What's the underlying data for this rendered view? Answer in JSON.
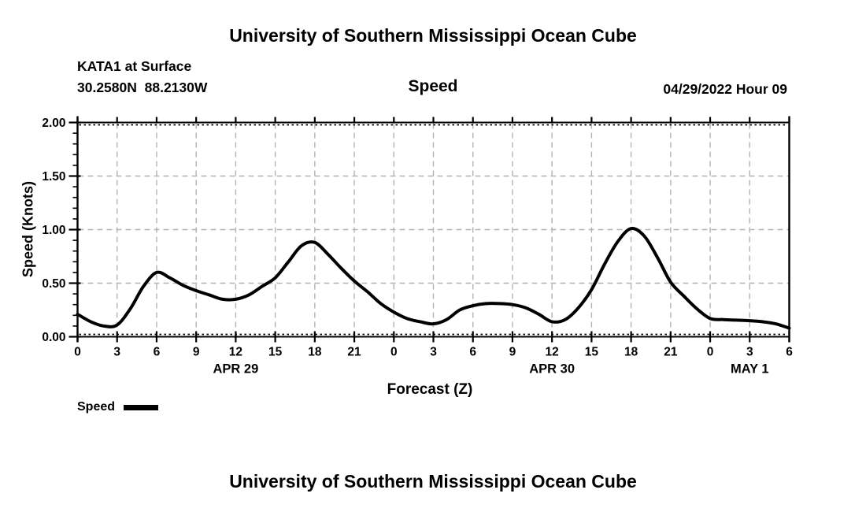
{
  "header": {
    "top_title": "University of Southern Mississippi Ocean Cube",
    "station_line1": "KATA1 at Surface",
    "station_line2": "30.2580N  88.2130W",
    "plot_title": "Speed",
    "datetime": "04/29/2022 Hour 09"
  },
  "footer": {
    "bottom_title": "University of Southern Mississippi Ocean Cube"
  },
  "legend": {
    "label": "Speed"
  },
  "chart_data": {
    "type": "line",
    "title": "Speed",
    "xlabel": "Forecast (Z)",
    "ylabel": "Speed (Knots)",
    "xlim_hours": [
      0,
      54
    ],
    "ylim": [
      0,
      2
    ],
    "y_major_tick_values": [
      0,
      0.5,
      1,
      1.5,
      2
    ],
    "y_tick_labels": [
      "0.00",
      "0.50",
      "1.00",
      "1.50",
      "2.00"
    ],
    "y_minor_step": 0.1,
    "x_major_step_hours": 3,
    "x_tick_hours": [
      0,
      3,
      6,
      9,
      12,
      15,
      18,
      21,
      24,
      27,
      30,
      33,
      36,
      39,
      42,
      45,
      48,
      51,
      54
    ],
    "x_tick_labels": [
      "0",
      "3",
      "6",
      "9",
      "12",
      "15",
      "18",
      "21",
      "0",
      "3",
      "6",
      "9",
      "12",
      "15",
      "18",
      "21",
      "0",
      "3",
      "6"
    ],
    "date_labels": [
      {
        "label": "APR 29",
        "hour": 12
      },
      {
        "label": "APR 30",
        "hour": 36
      },
      {
        "label": "MAY 1",
        "hour": 51
      }
    ],
    "grid": {
      "horizontal_values": [
        0.5,
        1.0,
        1.5
      ],
      "vertical_every_hours": 3,
      "style": "dashed-gray",
      "border_inner_style": "dotted-black"
    },
    "legend_position": "bottom-left",
    "series": [
      {
        "name": "Speed",
        "units": "Knots",
        "x_hours": [
          0,
          1,
          2,
          3,
          4,
          5,
          6,
          7,
          8,
          9,
          10,
          11,
          12,
          13,
          14,
          15,
          16,
          17,
          18,
          19,
          20,
          21,
          22,
          23,
          24,
          25,
          26,
          27,
          28,
          29,
          30,
          31,
          32,
          33,
          34,
          35,
          36,
          37,
          38,
          39,
          40,
          41,
          42,
          43,
          44,
          45,
          46,
          47,
          48,
          49,
          50,
          51,
          52,
          53,
          54
        ],
        "values": [
          0.21,
          0.14,
          0.1,
          0.11,
          0.26,
          0.47,
          0.6,
          0.55,
          0.48,
          0.43,
          0.39,
          0.35,
          0.35,
          0.39,
          0.47,
          0.55,
          0.7,
          0.85,
          0.88,
          0.77,
          0.64,
          0.52,
          0.42,
          0.31,
          0.23,
          0.17,
          0.14,
          0.12,
          0.16,
          0.25,
          0.29,
          0.31,
          0.31,
          0.3,
          0.27,
          0.21,
          0.14,
          0.16,
          0.27,
          0.44,
          0.68,
          0.89,
          1.01,
          0.94,
          0.74,
          0.51,
          0.38,
          0.26,
          0.17,
          0.16,
          0.155,
          0.15,
          0.14,
          0.12,
          0.08
        ]
      }
    ],
    "colors": {
      "line": "#000000",
      "grid": "#b3b3b3",
      "text": "#000000",
      "background": "#ffffff"
    }
  }
}
